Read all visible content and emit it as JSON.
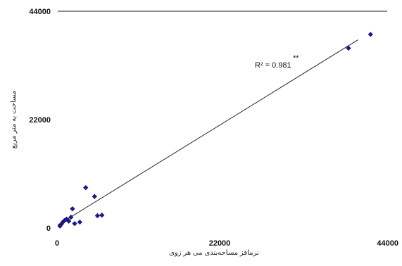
{
  "chart_data": {
    "type": "scatter",
    "xlabel": "ﻧﺮﻣﺎﻓﺰ ﻣﺴﺎﺣﻪ‌ﺑﻨﺪی ﻣﯽ ﻫﺮ زوی",
    "ylabel": "ﻣﺴﺎﺣﺖ ﺑﻪ ﻣﺘﺮ ﻣﺮﺑﻊ",
    "xlim": [
      0,
      44000
    ],
    "ylim": [
      0,
      44000
    ],
    "x_ticks": [
      "0",
      "22000",
      "44000"
    ],
    "y_ticks": [
      "0",
      "22000",
      "44000"
    ],
    "annotation": "R² = 0.981",
    "significance": "**",
    "trendline": {
      "x0": 0,
      "y0": 600,
      "x1": 40800,
      "y1": 38200
    },
    "points": [
      {
        "x": 300,
        "y": 400
      },
      {
        "x": 500,
        "y": 800
      },
      {
        "x": 700,
        "y": 1200
      },
      {
        "x": 900,
        "y": 1500
      },
      {
        "x": 1200,
        "y": 1800
      },
      {
        "x": 1500,
        "y": 1400
      },
      {
        "x": 1800,
        "y": 2200
      },
      {
        "x": 2000,
        "y": 3900
      },
      {
        "x": 2300,
        "y": 900
      },
      {
        "x": 3000,
        "y": 1200
      },
      {
        "x": 3800,
        "y": 8200
      },
      {
        "x": 5000,
        "y": 6400
      },
      {
        "x": 5400,
        "y": 2500
      },
      {
        "x": 6000,
        "y": 2600
      },
      {
        "x": 39500,
        "y": 36500
      },
      {
        "x": 42500,
        "y": 39300
      }
    ]
  }
}
